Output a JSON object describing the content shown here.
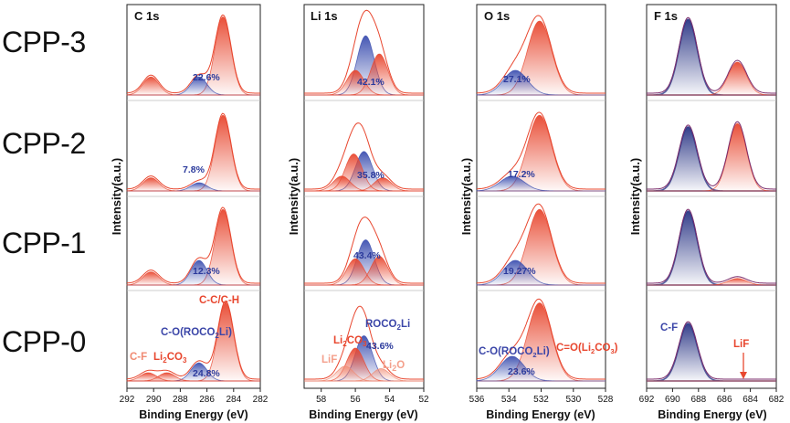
{
  "row_labels": [
    "CPP-3",
    "CPP-2",
    "CPP-1",
    "CPP-0"
  ],
  "colors": {
    "red": "#e8472f",
    "blue": "#3c4fb0",
    "navy": "#3a2a7a",
    "salmon": "#f08a72",
    "annot_red": "#e8472f",
    "annot_blue": "#3b46a8"
  },
  "chart_data": [
    {
      "type": "line",
      "title": "C 1s",
      "xlabel": "Binding Energy (eV)",
      "ylabel": "Intensity(a.u.)",
      "xlim": [
        292,
        282
      ],
      "xticks": [
        292,
        290,
        288,
        286,
        284,
        282
      ],
      "rows": [
        {
          "sample": "CPP-3",
          "peaks": [
            {
              "label": "C-C/C-H",
              "center": 284.8,
              "height": 0.95,
              "color": "red"
            },
            {
              "label": "C-O(ROCO2Li)",
              "center": 286.6,
              "height": 0.22,
              "color": "blue",
              "pct": "22.6%"
            },
            {
              "label": "C-F",
              "center": 290.2,
              "height": 0.22,
              "color": "red"
            }
          ]
        },
        {
          "sample": "CPP-2",
          "peaks": [
            {
              "label": "C-C/C-H",
              "center": 284.8,
              "height": 0.92,
              "color": "red"
            },
            {
              "label": "C-O(ROCO2Li)",
              "center": 286.6,
              "height": 0.1,
              "color": "blue",
              "pct": "7.8%"
            },
            {
              "label": "C-F",
              "center": 290.2,
              "height": 0.16,
              "color": "red"
            }
          ]
        },
        {
          "sample": "CPP-1",
          "peaks": [
            {
              "label": "C-C/C-H",
              "center": 284.8,
              "height": 0.92,
              "color": "red"
            },
            {
              "label": "C-O(ROCO2Li)",
              "center": 286.6,
              "height": 0.3,
              "color": "blue",
              "pct": "12.3%"
            },
            {
              "label": "C-F",
              "center": 290.2,
              "height": 0.16,
              "color": "red"
            }
          ]
        },
        {
          "sample": "CPP-0",
          "peaks": [
            {
              "label": "C-C/C-H",
              "center": 284.6,
              "height": 0.95,
              "color": "red"
            },
            {
              "label": "C-O(ROCO2Li)",
              "center": 286.6,
              "height": 0.22,
              "color": "blue",
              "pct": "24.8%"
            },
            {
              "label": "Li2CO3",
              "center": 289.0,
              "height": 0.1,
              "color": "red"
            },
            {
              "label": "C-F",
              "center": 290.4,
              "height": 0.1,
              "color": "red"
            }
          ]
        }
      ],
      "annotations": {
        "cc": "C-C/C-H",
        "co_pre": "C-O(ROCO",
        "co_sub": "2",
        "co_post": "Li)",
        "cf": "C-F",
        "li_pre": "Li",
        "li_sub": "2",
        "li_mid": "CO",
        "li_sub2": "3"
      }
    },
    {
      "type": "line",
      "title": "Li 1s",
      "xlabel": "Binding Energy (eV)",
      "ylabel": "Intensity(a.u.)",
      "xlim": [
        59,
        52
      ],
      "xticks": [
        58,
        56,
        54,
        52
      ],
      "rows": [
        {
          "sample": "CPP-3",
          "peaks": [
            {
              "label": "ROCO2Li",
              "center": 55.4,
              "height": 0.72,
              "color": "blue",
              "pct": "42.1%"
            },
            {
              "label": "Li2CO3",
              "center": 56.0,
              "height": 0.3,
              "color": "red"
            },
            {
              "label": "Li2O",
              "center": 54.6,
              "height": 0.5,
              "color": "red"
            }
          ]
        },
        {
          "sample": "CPP-2",
          "peaks": [
            {
              "label": "ROCO2Li",
              "center": 55.5,
              "height": 0.48,
              "color": "blue",
              "pct": "35.8%"
            },
            {
              "label": "Li2CO3",
              "center": 56.1,
              "height": 0.45,
              "color": "red"
            },
            {
              "label": "LiF",
              "center": 56.8,
              "height": 0.18,
              "color": "red"
            },
            {
              "label": "Li2O",
              "center": 54.4,
              "height": 0.16,
              "color": "red"
            }
          ]
        },
        {
          "sample": "CPP-1",
          "peaks": [
            {
              "label": "ROCO2Li",
              "center": 55.4,
              "height": 0.55,
              "color": "blue",
              "pct": "43.4%"
            },
            {
              "label": "Li2CO3",
              "center": 56.0,
              "height": 0.32,
              "color": "red"
            },
            {
              "label": "Li2O",
              "center": 54.6,
              "height": 0.35,
              "color": "red"
            }
          ]
        },
        {
          "sample": "CPP-0",
          "peaks": [
            {
              "label": "ROCO2Li",
              "center": 55.5,
              "height": 0.55,
              "color": "blue",
              "pct": "43.6%"
            },
            {
              "label": "Li2CO3",
              "center": 56.0,
              "height": 0.4,
              "color": "red"
            },
            {
              "label": "LiF",
              "center": 56.6,
              "height": 0.18,
              "color": "salmon"
            },
            {
              "label": "Li2O",
              "center": 54.5,
              "height": 0.15,
              "color": "salmon"
            }
          ]
        }
      ],
      "annotations": {
        "roco_pre": "ROCO",
        "roco_sub": "2",
        "roco_post": "Li",
        "li2co3_pre": "Li",
        "li2co3_sub": "2",
        "li2co3_mid": "CO",
        "li2co3_sub2": "3",
        "lif": "LiF",
        "li2o_pre": "Li",
        "li2o_sub": "2",
        "li2o_post": "O",
        "li2co3_r2_pre": "Li",
        "li2co3_r2_sub": "2",
        "li2co3_r2_mid": "CO",
        "li2co3_r2_sub2": "3"
      }
    },
    {
      "type": "line",
      "title": "O 1s",
      "xlabel": "Binding Energy (eV)",
      "ylabel": "Intensity(a.u.)",
      "xlim": [
        536,
        528
      ],
      "xticks": [
        536,
        534,
        532,
        530,
        528
      ],
      "rows": [
        {
          "sample": "CPP-3",
          "peaks": [
            {
              "label": "C=O(Li2CO3)",
              "center": 532.1,
              "height": 0.9,
              "color": "red"
            },
            {
              "label": "C-O(ROCO2Li)",
              "center": 533.6,
              "height": 0.3,
              "color": "blue",
              "pct": "27.1%"
            }
          ]
        },
        {
          "sample": "CPP-2",
          "peaks": [
            {
              "label": "C=O(Li2CO3)",
              "center": 532.1,
              "height": 0.92,
              "color": "red"
            },
            {
              "label": "C-O(ROCO2Li)",
              "center": 533.8,
              "height": 0.18,
              "color": "blue",
              "pct": "17.2%"
            }
          ]
        },
        {
          "sample": "CPP-1",
          "peaks": [
            {
              "label": "C=O(Li2CO3)",
              "center": 532.1,
              "height": 0.92,
              "color": "red"
            },
            {
              "label": "C-O(ROCO2Li)",
              "center": 533.6,
              "height": 0.3,
              "color": "blue",
              "pct": "19.27%"
            }
          ]
        },
        {
          "sample": "CPP-0",
          "peaks": [
            {
              "label": "C=O(Li2CO3)",
              "center": 532.1,
              "height": 0.95,
              "color": "red"
            },
            {
              "label": "C-O(ROCO2Li)",
              "center": 533.8,
              "height": 0.3,
              "color": "blue",
              "pct": "23.6%"
            }
          ]
        }
      ],
      "annotations": {
        "co_pre": "C-O(ROCO",
        "co_sub": "2",
        "co_post": "Li)",
        "cdo_pre": "C=O(Li",
        "cdo_sub": "2",
        "cdo_mid": "CO",
        "cdo_sub2": "3",
        "cdo_post": ")"
      }
    },
    {
      "type": "line",
      "title": "F 1s",
      "xlabel": "Binding Energy (eV)",
      "ylabel": "Intensity(a.u.)",
      "xlim": [
        692,
        682
      ],
      "xticks": [
        692,
        690,
        688,
        686,
        684,
        682
      ],
      "rows": [
        {
          "sample": "CPP-3",
          "peaks": [
            {
              "label": "C-F",
              "center": 688.8,
              "height": 0.92,
              "color": "navy"
            },
            {
              "label": "LiF",
              "center": 685.0,
              "height": 0.4,
              "color": "red"
            }
          ]
        },
        {
          "sample": "CPP-2",
          "peaks": [
            {
              "label": "C-F",
              "center": 688.8,
              "height": 0.78,
              "color": "navy"
            },
            {
              "label": "LiF",
              "center": 685.0,
              "height": 0.82,
              "color": "red"
            }
          ]
        },
        {
          "sample": "CPP-1",
          "peaks": [
            {
              "label": "C-F",
              "center": 688.8,
              "height": 0.9,
              "color": "navy"
            },
            {
              "label": "LiF",
              "center": 685.0,
              "height": 0.08,
              "color": "red"
            }
          ]
        },
        {
          "sample": "CPP-0",
          "peaks": [
            {
              "label": "C-F",
              "center": 688.8,
              "height": 0.7,
              "color": "navy"
            },
            {
              "label": "LiF",
              "center": 685.0,
              "height": 0.0,
              "color": "red"
            }
          ]
        }
      ],
      "annotations": {
        "cf": "C-F",
        "lif": "LiF"
      }
    }
  ]
}
